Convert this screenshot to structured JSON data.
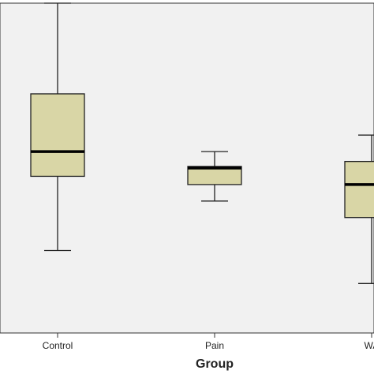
{
  "chart_data": {
    "type": "box",
    "x_label": "Group",
    "categories": [
      "Control",
      "Pain",
      "WA"
    ],
    "min": [
      25,
      40,
      15
    ],
    "q1": [
      47.5,
      45,
      35
    ],
    "median": [
      55,
      50,
      45
    ],
    "q3": [
      72.5,
      50.5,
      52
    ],
    "max": [
      100,
      55,
      60
    ],
    "ylim": [
      0,
      100
    ],
    "color": "#d9d6a6",
    "background": "#f1f1f1"
  }
}
